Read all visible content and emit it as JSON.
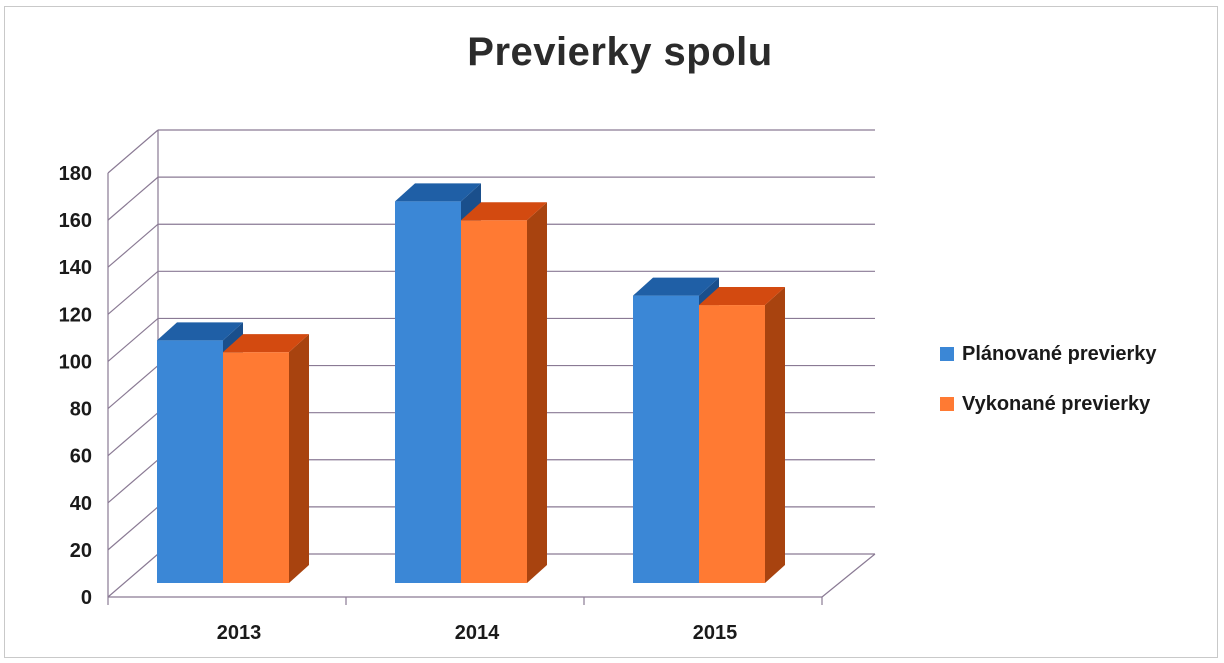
{
  "chart_data": {
    "type": "bar",
    "title": "Previerky spolu",
    "categories": [
      "2013",
      "2014",
      "2015"
    ],
    "series": [
      {
        "name": "Plánované  previerky",
        "values": [
          103,
          162,
          122
        ]
      },
      {
        "name": "Vykonané previerky",
        "values": [
          98,
          154,
          118
        ]
      }
    ],
    "ylim": [
      0,
      180
    ],
    "yticks": [
      "0",
      "20",
      "40",
      "60",
      "80",
      "100",
      "120",
      "140",
      "160",
      "180"
    ],
    "xlabel": "",
    "ylabel": "",
    "grid": true,
    "legend_position": "right",
    "colors": {
      "planned_front": "#3b87d6",
      "planned_top": "#1f5fa6",
      "planned_side": "#1a4f8c",
      "done_front": "#ff7a33",
      "done_top": "#d34a10",
      "done_side": "#a8430f"
    }
  }
}
